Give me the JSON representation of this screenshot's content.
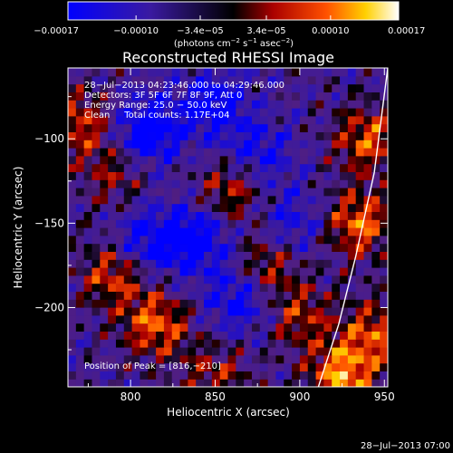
{
  "chart_data": {
    "type": "heatmap",
    "title": "Reconstructed RHESSI Image",
    "xlabel": "Heliocentric X (arcsec)",
    "ylabel": "Heliocentric Y (arcsec)",
    "xlim": [
      763,
      952
    ],
    "ylim": [
      -247,
      -58
    ],
    "x_ticks": [
      800,
      850,
      900,
      950
    ],
    "x_tick_labels": [
      "800",
      "850",
      "900",
      "950"
    ],
    "y_ticks": [
      -100,
      -150,
      -200
    ],
    "y_tick_labels": [
      "−100",
      "−150",
      "−200"
    ],
    "colorbar": {
      "range": [
        -0.00017,
        0.00017
      ],
      "ticks": [
        -0.00017,
        -0.0001,
        -3.4e-05,
        3.4e-05,
        0.0001,
        0.00017
      ],
      "tick_labels": [
        "−0.00017",
        "−0.00010",
        "−3.4e−05",
        "3.4e−05",
        "0.00010",
        "0.00017"
      ],
      "units_main": "(photons cm",
      "units_exp1": "−2",
      "units_mid": " s",
      "units_exp2": "−1",
      "units_tail": " asec",
      "units_exp3": "−2",
      "units_close": ")"
    },
    "info_lines": [
      "28−Jul−2013 04:23:46.000 to 04:29:46.000",
      "Detectors: 3F 5F 6F 7F 8F 9F, Att 0",
      "Energy Range: 25.0 − 50.0 keV",
      "Clean     Total counts: 1.17E+04"
    ],
    "peak_annotation": "Position of Peak = [816,−210]",
    "peak_position": [
      816,
      -210
    ],
    "limb_curve": [
      [
        952,
        -58
      ],
      [
        944,
        -120
      ],
      [
        933,
        -170
      ],
      [
        923,
        -210
      ],
      [
        911,
        -247
      ]
    ],
    "grid_size": [
      40,
      40
    ],
    "hot_spots": [
      {
        "x": 925,
        "y": -240,
        "amp": 1.0
      },
      {
        "x": 935,
        "y": -150,
        "amp": 0.9
      },
      {
        "x": 940,
        "y": -100,
        "amp": 0.8
      },
      {
        "x": 815,
        "y": -210,
        "amp": 0.85
      },
      {
        "x": 790,
        "y": -180,
        "amp": 0.75
      },
      {
        "x": 770,
        "y": -90,
        "amp": 0.7
      },
      {
        "x": 860,
        "y": -130,
        "amp": 0.7
      },
      {
        "x": 880,
        "y": -175,
        "amp": 0.65
      },
      {
        "x": 900,
        "y": -205,
        "amp": 0.6
      },
      {
        "x": 850,
        "y": -240,
        "amp": 0.55
      },
      {
        "x": 790,
        "y": -120,
        "amp": 0.5
      },
      {
        "x": 945,
        "y": -215,
        "amp": 0.75
      }
    ],
    "cold_spots": [
      {
        "x": 810,
        "y": -95,
        "amp": -0.9
      },
      {
        "x": 850,
        "y": -80,
        "amp": -0.7
      },
      {
        "x": 840,
        "y": -160,
        "amp": -0.8
      },
      {
        "x": 810,
        "y": -160,
        "amp": -0.7
      },
      {
        "x": 875,
        "y": -110,
        "amp": -0.6
      },
      {
        "x": 865,
        "y": -195,
        "amp": -0.7
      },
      {
        "x": 895,
        "y": -150,
        "amp": -0.5
      }
    ]
  },
  "footer_timestamp": "28−Jul−2013 07:00"
}
